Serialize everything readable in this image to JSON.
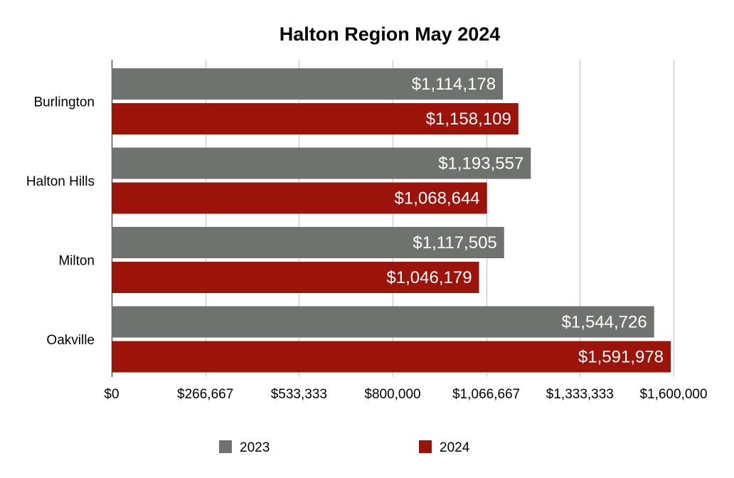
{
  "chart_data": {
    "type": "bar",
    "orientation": "horizontal",
    "title": "Halton Region May 2024",
    "categories": [
      "Burlington",
      "Halton Hills",
      "Milton",
      "Oakville"
    ],
    "series": [
      {
        "name": "2023",
        "color": "#6f7370",
        "values": [
          1114178,
          1193557,
          1117505,
          1544726
        ],
        "labels": [
          "$1,114,178",
          "$1,193,557",
          "$1,117,505",
          "$1,544,726"
        ]
      },
      {
        "name": "2024",
        "color": "#9b1309",
        "values": [
          1158109,
          1068644,
          1046179,
          1591978
        ],
        "labels": [
          "$1,158,109",
          "$1,068,644",
          "$1,046,179",
          "$1,591,978"
        ]
      }
    ],
    "xlim": [
      0,
      1600000
    ],
    "xticks": [
      0,
      266667,
      533333,
      800000,
      1066667,
      1333333,
      1600000
    ],
    "xtick_labels": [
      "$0",
      "$266,667",
      "$533,333",
      "$800,000",
      "$1,066,667",
      "$1,333,333",
      "$1,600,000"
    ],
    "grid": true,
    "gridline_color": "#c6c6c6",
    "legend_position": "bottom"
  }
}
